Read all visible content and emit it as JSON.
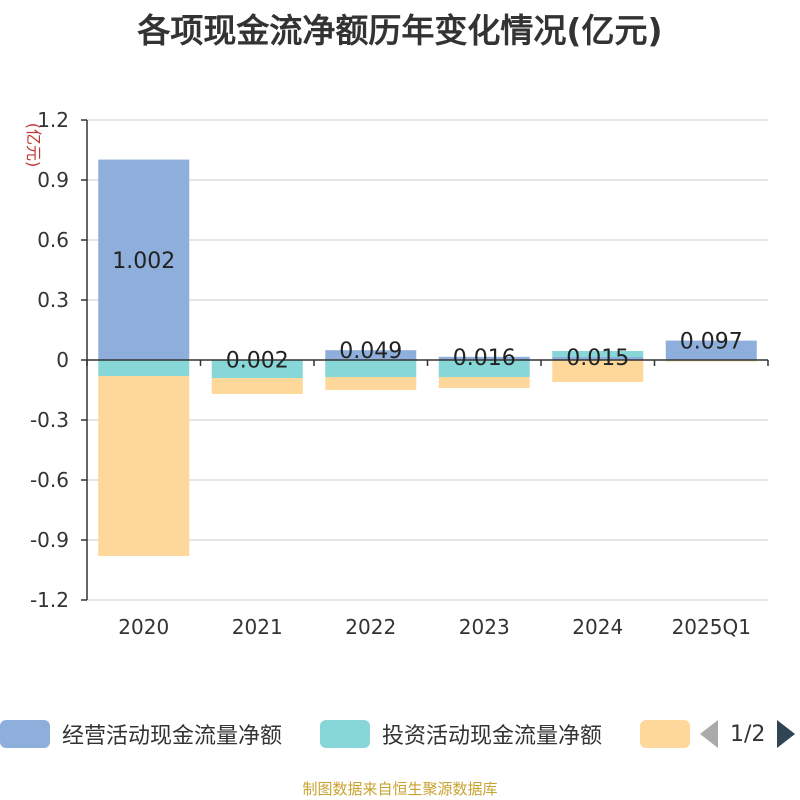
{
  "chart_data": {
    "type": "bar",
    "stacked": true,
    "title": "各项现金流净额历年变化情况(亿元)",
    "ylabel": "(亿元)",
    "categories": [
      "2020",
      "2021",
      "2022",
      "2023",
      "2024",
      "2025Q1"
    ],
    "ylim": [
      -1.2,
      1.2
    ],
    "yticks": [
      1.2,
      0.9,
      0.6,
      0.3,
      0,
      -0.3,
      -0.6,
      -0.9,
      -1.2
    ],
    "ytick_labels": [
      "1.2",
      "0.9",
      "0.6",
      "0.3",
      "0",
      "-0.3",
      "-0.6",
      "-0.9",
      "-1.2"
    ],
    "grid": true,
    "series": [
      {
        "name": "经营活动现金流量净额",
        "color": "#8eaedb",
        "values": [
          1.002,
          0.002,
          0.049,
          0.016,
          0.015,
          0.097
        ],
        "labels": [
          "1.002",
          "0.002",
          "0.049",
          "0.016",
          "0.015",
          "0.097"
        ]
      },
      {
        "name": "投资活动现金流量净额",
        "color": "#87d6d8",
        "values": [
          -0.08,
          -0.09,
          -0.085,
          -0.085,
          0.03,
          -0.004
        ]
      },
      {
        "name": "",
        "color": "#fed89a",
        "values": [
          -0.9,
          -0.08,
          -0.065,
          -0.055,
          -0.11,
          -0.004
        ]
      }
    ],
    "legend": {
      "placement": "bottom",
      "page": "1/2"
    }
  },
  "source_note": "制图数据来自恒生聚源数据库"
}
